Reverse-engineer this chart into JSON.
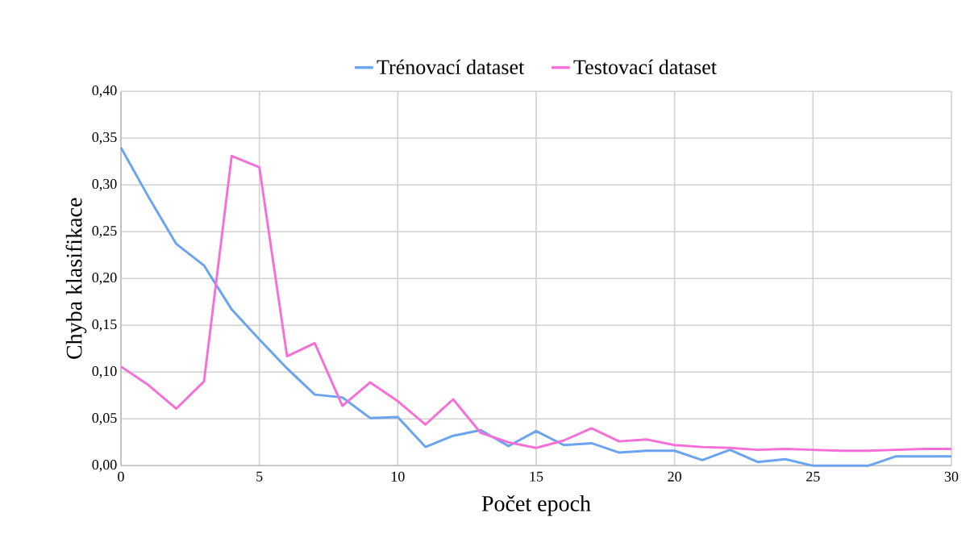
{
  "chart_data": {
    "type": "line",
    "xlabel": "Počet epoch",
    "ylabel": "Chyba klasifikace",
    "x": [
      0,
      1,
      2,
      3,
      4,
      5,
      6,
      7,
      8,
      9,
      10,
      11,
      12,
      13,
      14,
      15,
      16,
      17,
      18,
      19,
      20,
      21,
      22,
      23,
      24,
      25,
      26,
      27,
      28,
      29,
      30
    ],
    "series": [
      {
        "name": "Trénovací dataset",
        "color": "#6aa4f0",
        "values": [
          0.34,
          0.287,
          0.237,
          0.214,
          0.167,
          0.135,
          0.104,
          0.076,
          0.073,
          0.051,
          0.052,
          0.02,
          0.032,
          0.038,
          0.021,
          0.037,
          0.022,
          0.024,
          0.014,
          0.016,
          0.016,
          0.006,
          0.017,
          0.004,
          0.007,
          0.0,
          0.0,
          0.0,
          0.01,
          0.01,
          0.01
        ]
      },
      {
        "name": "Testovací dataset",
        "color": "#f66fd8",
        "values": [
          0.106,
          0.086,
          0.061,
          0.09,
          0.331,
          0.319,
          0.117,
          0.131,
          0.064,
          0.089,
          0.069,
          0.044,
          0.071,
          0.035,
          0.025,
          0.019,
          0.027,
          0.04,
          0.026,
          0.028,
          0.022,
          0.02,
          0.019,
          0.017,
          0.018,
          0.017,
          0.016,
          0.016,
          0.017,
          0.018,
          0.018
        ]
      }
    ],
    "xlim": [
      0,
      30
    ],
    "xticks": [
      0,
      5,
      10,
      15,
      20,
      25,
      30
    ],
    "ylim": [
      0,
      0.4
    ],
    "yticks": [
      {
        "value": 0,
        "label": "0,00"
      },
      {
        "value": 0.05,
        "label": "0,05"
      },
      {
        "value": 0.1,
        "label": "0,10"
      },
      {
        "value": 0.15,
        "label": "0,15"
      },
      {
        "value": 0.2,
        "label": "0,20"
      },
      {
        "value": 0.25,
        "label": "0,25"
      },
      {
        "value": 0.3,
        "label": "0,30"
      },
      {
        "value": 0.35,
        "label": "0,35"
      },
      {
        "value": 0.4,
        "label": "0,40"
      }
    ],
    "grid": true,
    "legend": "top",
    "marker": "none",
    "line_style": "solid"
  }
}
